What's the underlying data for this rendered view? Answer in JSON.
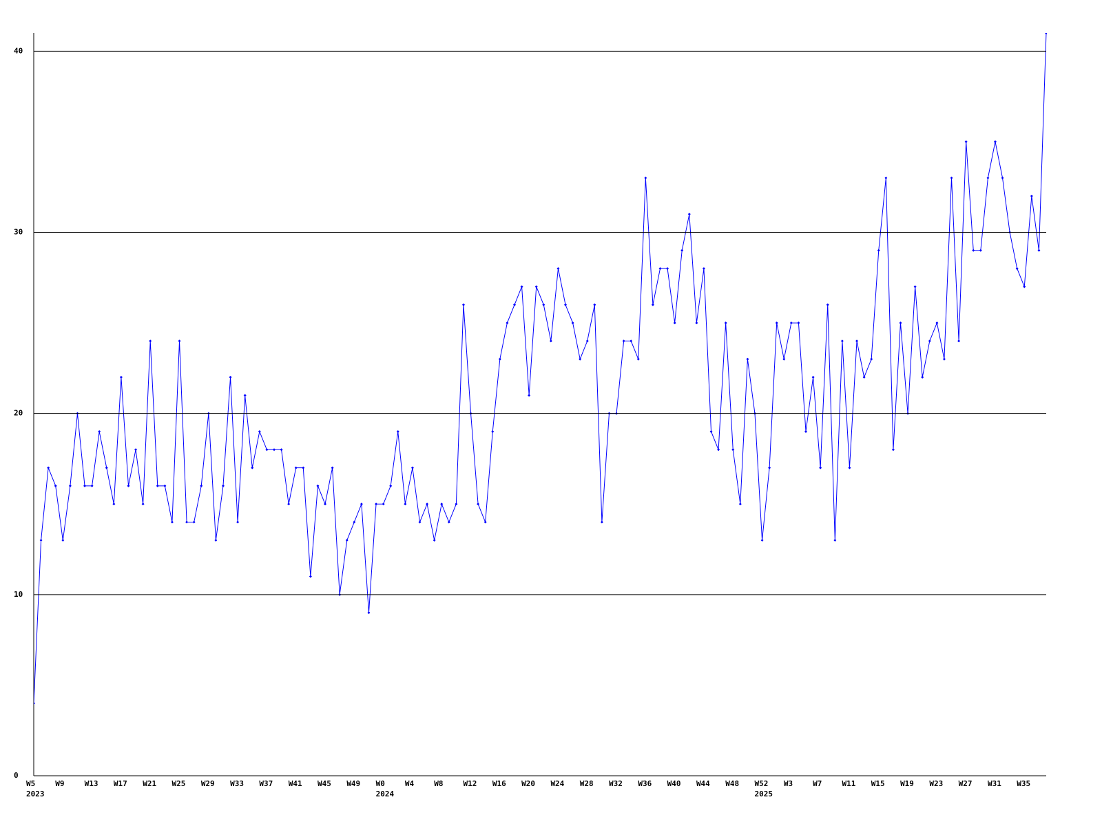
{
  "chart_data": {
    "type": "line",
    "categories": [
      "W5",
      null,
      null,
      null,
      "W9",
      null,
      null,
      null,
      "W13",
      null,
      null,
      null,
      "W17",
      null,
      null,
      null,
      "W21",
      null,
      null,
      null,
      "W25",
      null,
      null,
      null,
      "W29",
      null,
      null,
      null,
      "W33",
      null,
      null,
      null,
      "W37",
      null,
      null,
      null,
      "W41",
      null,
      null,
      null,
      "W45",
      null,
      null,
      null,
      "W49",
      null,
      null,
      null,
      "W0",
      null,
      null,
      null,
      "W4",
      null,
      null,
      null,
      "W8",
      null,
      null,
      null,
      "W12",
      null,
      null,
      null,
      "W16",
      null,
      null,
      null,
      "W20",
      null,
      null,
      null,
      "W24",
      null,
      null,
      null,
      "W28",
      null,
      null,
      null,
      "W32",
      null,
      null,
      null,
      "W36",
      null,
      null,
      null,
      "W40",
      null,
      null,
      null,
      "W44",
      null,
      null,
      null,
      "W48",
      null,
      null,
      null,
      "W52",
      null,
      null,
      null,
      "W3",
      null,
      null,
      null,
      "W7",
      null,
      null,
      null,
      "W11",
      null,
      null,
      null,
      "W15",
      null,
      null,
      null,
      "W19",
      null,
      null,
      null,
      "W23",
      null,
      null,
      null,
      "W27",
      null,
      null,
      null,
      "W31",
      null,
      null,
      null,
      "W35",
      null,
      null,
      null
    ],
    "year_labels": [
      "2023",
      null,
      null,
      null,
      null,
      null,
      null,
      null,
      null,
      null,
      null,
      null,
      null,
      null,
      null,
      null,
      null,
      null,
      null,
      null,
      null,
      null,
      null,
      null,
      null,
      null,
      null,
      null,
      null,
      null,
      null,
      null,
      null,
      null,
      null,
      null,
      null,
      null,
      null,
      null,
      null,
      null,
      null,
      null,
      null,
      null,
      null,
      null,
      "2024",
      null,
      null,
      null,
      null,
      null,
      null,
      null,
      null,
      null,
      null,
      null,
      null,
      null,
      null,
      null,
      null,
      null,
      null,
      null,
      null,
      null,
      null,
      null,
      null,
      null,
      null,
      null,
      null,
      null,
      null,
      null,
      null,
      null,
      null,
      null,
      null,
      null,
      null,
      null,
      null,
      null,
      null,
      null,
      null,
      null,
      null,
      null,
      null,
      null,
      null,
      null,
      "2025",
      null,
      null,
      null,
      null,
      null,
      null,
      null,
      null,
      null,
      null,
      null,
      null,
      null,
      null,
      null,
      null,
      null,
      null,
      null,
      null,
      null,
      null,
      null,
      null,
      null,
      null,
      null,
      null,
      null,
      null,
      null,
      null,
      null,
      null,
      null,
      null,
      null,
      null,
      null
    ],
    "series": [
      {
        "color": "#0000ff",
        "values": [
          4,
          13,
          17,
          16,
          13,
          16,
          20,
          16,
          16,
          19,
          17,
          15,
          22,
          16,
          18,
          15,
          24,
          16,
          16,
          14,
          24,
          14,
          14,
          16,
          20,
          13,
          16,
          22,
          14,
          21,
          17,
          19,
          18,
          18,
          18,
          15,
          17,
          17,
          11,
          16,
          15,
          17,
          10,
          13,
          14,
          15,
          9,
          15,
          15,
          16,
          19,
          15,
          17,
          14,
          15,
          13,
          15,
          14,
          15,
          26,
          20,
          15,
          14,
          19,
          23,
          25,
          26,
          27,
          21,
          27,
          26,
          24,
          28,
          26,
          25,
          23,
          24,
          26,
          14,
          20,
          20,
          24,
          24,
          23,
          33,
          26,
          28,
          28,
          25,
          29,
          31,
          25,
          28,
          19,
          18,
          25,
          18,
          15,
          23,
          20,
          13,
          17,
          25,
          23,
          25,
          25,
          19,
          22,
          17,
          26,
          13,
          24,
          17,
          24,
          22,
          23,
          29,
          33,
          18,
          25,
          20,
          27,
          22,
          24,
          25,
          23,
          33,
          24,
          35,
          29,
          29,
          33,
          35,
          33,
          30,
          28,
          27,
          32,
          29,
          41
        ]
      }
    ],
    "ylim": [
      0,
      41
    ],
    "yticks": [
      0,
      10,
      20,
      30,
      40
    ],
    "grid": true
  }
}
